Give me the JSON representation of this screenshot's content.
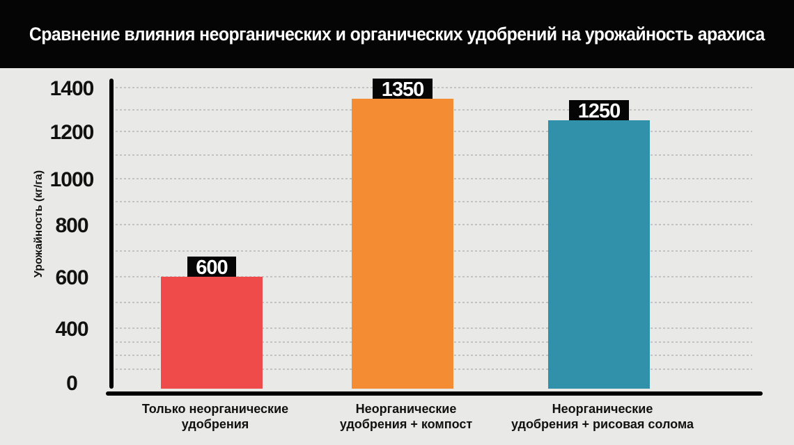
{
  "chart_data": {
    "type": "bar",
    "title": "Сравнение влияния неорганических и органических удобрений на урожайность арахиса",
    "ylabel": "Урожайность (кг/га)",
    "xlabel": "",
    "categories": [
      [
        "Только неорганические",
        "удобрения"
      ],
      [
        "Неорганические",
        "удобрения + компост"
      ],
      [
        "Неорганические",
        "удобрения + рисовая солома"
      ]
    ],
    "values": [
      600,
      1350,
      1250
    ],
    "value_labels": [
      "600",
      "1350",
      "1250"
    ],
    "colors": [
      "#ef4b4a",
      "#f48c34",
      "#3190aa"
    ],
    "yticks": [
      0,
      400,
      600,
      800,
      1000,
      1200,
      1400
    ],
    "ytick_labels": [
      "0",
      "400",
      "600",
      "800",
      "1000",
      "1200",
      "1400"
    ],
    "ylim": [
      0,
      1460
    ],
    "grid": "dashed horizontal",
    "legend": "none"
  }
}
